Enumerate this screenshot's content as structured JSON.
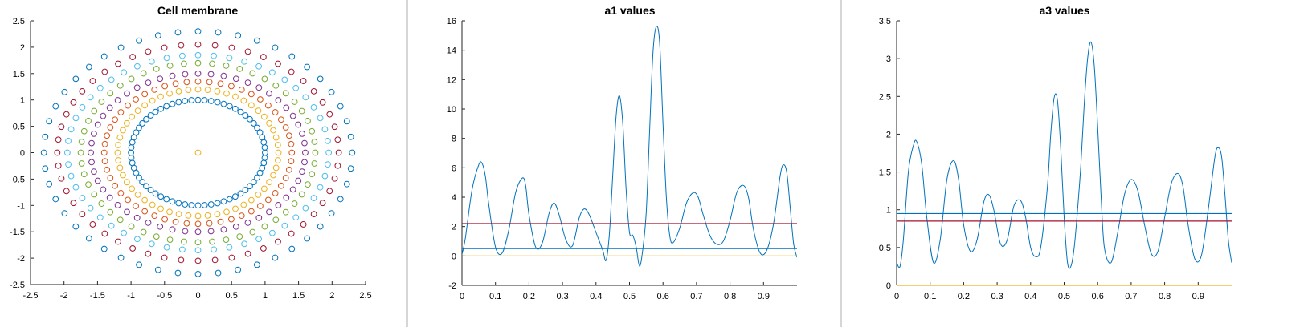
{
  "chart_data": [
    {
      "type": "scatter",
      "title": "Cell membrane",
      "xlabel": "",
      "ylabel": "",
      "xlim": [
        -2.5,
        2.5
      ],
      "ylim": [
        -2.5,
        2.5
      ],
      "xticks": [
        "-2.5",
        "-2",
        "-1.5",
        "-1",
        "-0.5",
        "0",
        "0.5",
        "1",
        "1.5",
        "2",
        "2.5"
      ],
      "yticks": [
        "2.5",
        "2",
        "1.5",
        "1",
        "0.5",
        "0",
        "-0.5",
        "-1",
        "-1.5",
        "-2",
        "-2.5"
      ],
      "grid": false,
      "marker": "circle-open",
      "series": [
        {
          "color": "#edb120",
          "points_per_ring": 1,
          "rx": 0,
          "ry": 0,
          "center": [
            0,
            0
          ]
        },
        {
          "color": "#0072bd",
          "points_per_ring": 64,
          "rx": 1.0,
          "ry": 1.0
        },
        {
          "color": "#edb120",
          "points_per_ring": 52,
          "rx": 1.2,
          "ry": 1.2
        },
        {
          "color": "#d95319",
          "points_per_ring": 52,
          "rx": 1.4,
          "ry": 1.35
        },
        {
          "color": "#7e2f8e",
          "points_per_ring": 52,
          "rx": 1.6,
          "ry": 1.5
        },
        {
          "color": "#77ac30",
          "points_per_ring": 52,
          "rx": 1.75,
          "ry": 1.7
        },
        {
          "color": "#4dbeee",
          "points_per_ring": 52,
          "rx": 1.95,
          "ry": 1.85
        },
        {
          "color": "#a2142f",
          "points_per_ring": 52,
          "rx": 2.1,
          "ry": 2.05
        },
        {
          "color": "#0072bd",
          "points_per_ring": 48,
          "rx": 2.3,
          "ry": 2.3
        }
      ]
    },
    {
      "type": "line",
      "title": "a1 values",
      "xlabel": "",
      "ylabel": "",
      "xlim": [
        0,
        1
      ],
      "ylim": [
        -2,
        16
      ],
      "xticks": [
        "0",
        "0.1",
        "0.2",
        "0.3",
        "0.4",
        "0.5",
        "0.6",
        "0.7",
        "0.8",
        "0.9"
      ],
      "yticks": [
        "16",
        "14",
        "12",
        "10",
        "8",
        "6",
        "4",
        "2",
        "0",
        "-2"
      ],
      "grid": false,
      "series": [
        {
          "color": "#0072bd",
          "type": "line",
          "x": [
            0,
            0.01,
            0.03,
            0.05,
            0.06,
            0.07,
            0.08,
            0.1,
            0.12,
            0.14,
            0.16,
            0.18,
            0.19,
            0.2,
            0.22,
            0.24,
            0.26,
            0.275,
            0.29,
            0.31,
            0.33,
            0.35,
            0.365,
            0.38,
            0.4,
            0.42,
            0.43,
            0.44,
            0.45,
            0.46,
            0.47,
            0.48,
            0.49,
            0.5,
            0.51,
            0.52,
            0.53,
            0.54,
            0.55,
            0.56,
            0.57,
            0.58,
            0.59,
            0.6,
            0.61,
            0.62,
            0.63,
            0.65,
            0.67,
            0.69,
            0.705,
            0.72,
            0.74,
            0.76,
            0.78,
            0.8,
            0.82,
            0.84,
            0.855,
            0.87,
            0.89,
            0.91,
            0.93,
            0.95,
            0.96,
            0.97,
            0.98,
            0.99,
            1.0
          ],
          "y": [
            0.1,
            1.2,
            4.5,
            6.2,
            6.3,
            5.4,
            3.5,
            0.6,
            0.2,
            1.8,
            4.3,
            5.3,
            4.8,
            2.8,
            0.6,
            0.9,
            2.9,
            3.6,
            2.8,
            1.1,
            0.7,
            2.6,
            3.2,
            2.8,
            1.6,
            0.4,
            -0.3,
            1.5,
            5.5,
            9.5,
            10.9,
            9.0,
            4.5,
            1.6,
            1.4,
            0.6,
            -0.7,
            0.5,
            3.0,
            8.5,
            13.8,
            15.6,
            14.5,
            9.0,
            4.0,
            1.4,
            0.9,
            1.9,
            3.6,
            4.3,
            4.0,
            2.8,
            1.4,
            0.8,
            1.0,
            2.4,
            4.3,
            4.8,
            4.0,
            1.8,
            0.2,
            0.4,
            2.2,
            5.5,
            6.2,
            5.6,
            3.2,
            0.8,
            -0.1
          ]
        },
        {
          "color": "#a2142f",
          "type": "flat",
          "y": 2.2
        },
        {
          "color": "#0072bd",
          "type": "flat",
          "y": 0.5
        },
        {
          "color": "#edb120",
          "type": "flat",
          "y": 0.0
        }
      ]
    },
    {
      "type": "line",
      "title": "a3 values",
      "xlabel": "",
      "ylabel": "",
      "xlim": [
        0,
        1
      ],
      "ylim": [
        0,
        3.5
      ],
      "xticks": [
        "0",
        "0.1",
        "0.2",
        "0.3",
        "0.4",
        "0.5",
        "0.6",
        "0.7",
        "0.8",
        "0.9"
      ],
      "yticks": [
        "3.5",
        "3",
        "2.5",
        "2",
        "1.5",
        "1",
        "0.5",
        "0"
      ],
      "grid": false,
      "series": [
        {
          "color": "#0072bd",
          "type": "line",
          "x": [
            0,
            0.01,
            0.02,
            0.035,
            0.05,
            0.06,
            0.075,
            0.09,
            0.11,
            0.13,
            0.15,
            0.17,
            0.185,
            0.2,
            0.22,
            0.24,
            0.26,
            0.275,
            0.29,
            0.31,
            0.33,
            0.35,
            0.37,
            0.385,
            0.4,
            0.415,
            0.43,
            0.45,
            0.46,
            0.47,
            0.48,
            0.49,
            0.5,
            0.51,
            0.52,
            0.53,
            0.54,
            0.55,
            0.56,
            0.57,
            0.58,
            0.59,
            0.6,
            0.61,
            0.62,
            0.64,
            0.66,
            0.68,
            0.7,
            0.72,
            0.74,
            0.76,
            0.78,
            0.8,
            0.82,
            0.84,
            0.855,
            0.87,
            0.89,
            0.91,
            0.93,
            0.95,
            0.96,
            0.97,
            0.98,
            0.99,
            1.0
          ],
          "y": [
            0.3,
            0.25,
            0.6,
            1.5,
            1.85,
            1.9,
            1.6,
            0.9,
            0.3,
            0.6,
            1.4,
            1.65,
            1.4,
            0.8,
            0.45,
            0.6,
            1.1,
            1.2,
            1.0,
            0.55,
            0.6,
            1.05,
            1.12,
            0.9,
            0.5,
            0.38,
            0.5,
            1.3,
            2.0,
            2.48,
            2.45,
            1.8,
            0.9,
            0.3,
            0.25,
            0.5,
            1.0,
            1.6,
            2.4,
            3.0,
            3.22,
            2.9,
            2.1,
            1.2,
            0.5,
            0.3,
            0.7,
            1.2,
            1.4,
            1.25,
            0.8,
            0.42,
            0.45,
            0.9,
            1.35,
            1.48,
            1.3,
            0.8,
            0.35,
            0.4,
            1.0,
            1.7,
            1.82,
            1.7,
            1.2,
            0.6,
            0.3
          ]
        },
        {
          "color": "#0072bd",
          "type": "flat",
          "y": 0.95
        },
        {
          "color": "#a2142f",
          "type": "flat",
          "y": 0.85
        },
        {
          "color": "#edb120",
          "type": "flat",
          "y": 0.0
        }
      ]
    }
  ]
}
